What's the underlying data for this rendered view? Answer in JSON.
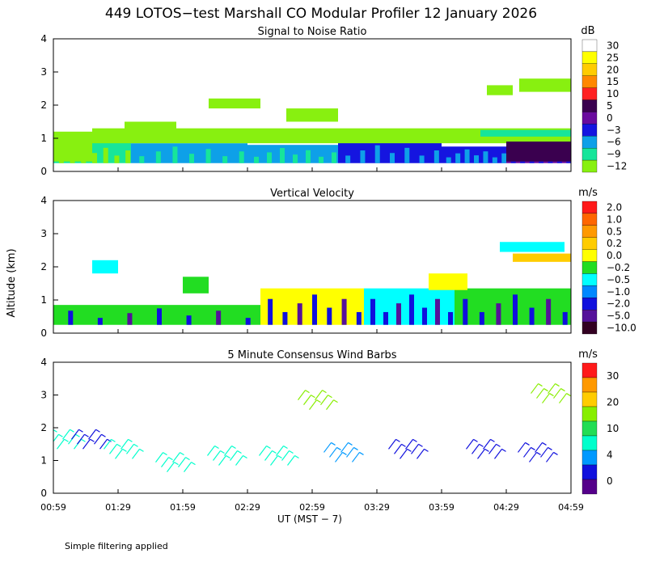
{
  "title": "449 LOTOS−test Marshall CO Modular Profiler 12 January 2026",
  "y_label": "Altitude (km)",
  "x_label": "UT   (MST − 7)",
  "footnote": "Simple filtering applied",
  "x_ticks": [
    "00:59",
    "01:29",
    "01:59",
    "02:29",
    "02:59",
    "03:29",
    "03:59",
    "04:29",
    "04:59"
  ],
  "y_ticks": [
    "0",
    "1",
    "2",
    "3",
    "4"
  ],
  "chart_data": [
    {
      "type": "heatmap",
      "title": "Signal to Noise Ratio",
      "units": "dB",
      "ylim": [
        0,
        4
      ],
      "colorbar": {
        "labels": [
          "30",
          "25",
          "20",
          "15",
          "10",
          "5",
          "0",
          "−3",
          "−6",
          "−9",
          "−12"
        ],
        "colors": [
          "#ffffff",
          "#ffff00",
          "#ffcc00",
          "#ff8800",
          "#ff2222",
          "#3a004f",
          "#6a0a9e",
          "#1515e0",
          "#0ea0e8",
          "#17e59a",
          "#88f010"
        ]
      },
      "bands": [
        {
          "x0": 0.0,
          "x1": 0.6,
          "y0": 0.25,
          "y1": 0.9,
          "level": -9
        },
        {
          "x0": 0.6,
          "x1": 1.5,
          "y0": 0.25,
          "y1": 0.85,
          "level": -6
        },
        {
          "x0": 1.5,
          "x1": 2.2,
          "y0": 0.25,
          "y1": 0.8,
          "level": -6
        },
        {
          "x0": 2.2,
          "x1": 3.0,
          "y0": 0.25,
          "y1": 0.9,
          "level": -3
        },
        {
          "x0": 3.0,
          "x1": 3.5,
          "y0": 0.25,
          "y1": 0.75,
          "level": -3
        },
        {
          "x0": 3.5,
          "x1": 4.0,
          "y0": 0.25,
          "y1": 1.0,
          "level": 0
        }
      ],
      "patches": [
        {
          "x0": 0.0,
          "x1": 0.3,
          "y0": 0.3,
          "y1": 1.2,
          "level": -12
        },
        {
          "x0": 0.3,
          "x1": 4.0,
          "y0": 0.85,
          "y1": 1.3,
          "level": -12
        },
        {
          "x0": 0.55,
          "x1": 0.95,
          "y0": 1.1,
          "y1": 1.5,
          "level": -12
        },
        {
          "x0": 1.2,
          "x1": 1.6,
          "y0": 1.9,
          "y1": 2.2,
          "level": -12
        },
        {
          "x0": 1.8,
          "x1": 2.2,
          "y0": 1.5,
          "y1": 1.9,
          "level": -12
        },
        {
          "x0": 3.35,
          "x1": 3.55,
          "y0": 2.3,
          "y1": 2.6,
          "level": -12
        },
        {
          "x0": 3.6,
          "x1": 4.0,
          "y0": 2.4,
          "y1": 2.8,
          "level": -12
        },
        {
          "x0": 3.3,
          "x1": 4.0,
          "y0": 1.05,
          "y1": 1.25,
          "level": -9
        },
        {
          "x0": 3.5,
          "x1": 4.0,
          "y0": 0.3,
          "y1": 0.9,
          "level": 5
        }
      ]
    },
    {
      "type": "heatmap",
      "title": "Vertical Velocity",
      "units": "m/s",
      "ylim": [
        0,
        4
      ],
      "colorbar": {
        "labels": [
          "2.0",
          "1.0",
          "0.5",
          "0.2",
          "0.0",
          "−0.2",
          "−0.5",
          "−1.0",
          "−2.0",
          "−5.0",
          "−10.0"
        ],
        "colors": [
          "#ff1a1a",
          "#ff6600",
          "#ff9900",
          "#ffcc00",
          "#ffff00",
          "#22dd22",
          "#00ffff",
          "#0088ff",
          "#1010dd",
          "#55119a",
          "#330022"
        ]
      },
      "bands": [
        {
          "x0": 0.0,
          "x1": 1.6,
          "y0": 0.25,
          "y1": 0.85,
          "level": -0.2
        },
        {
          "x0": 1.6,
          "x1": 2.4,
          "y0": 0.25,
          "y1": 1.35,
          "level": 0.0
        },
        {
          "x0": 2.4,
          "x1": 3.1,
          "y0": 0.25,
          "y1": 1.35,
          "level": -0.5
        },
        {
          "x0": 3.1,
          "x1": 4.0,
          "y0": 0.25,
          "y1": 1.35,
          "level": -0.2
        }
      ],
      "patches": [
        {
          "x0": 0.3,
          "x1": 0.5,
          "y0": 1.8,
          "y1": 2.2,
          "level": -0.5
        },
        {
          "x0": 1.0,
          "x1": 1.2,
          "y0": 1.2,
          "y1": 1.7,
          "level": -0.2
        },
        {
          "x0": 2.9,
          "x1": 3.2,
          "y0": 1.3,
          "y1": 1.8,
          "level": 0.0
        },
        {
          "x0": 3.45,
          "x1": 3.95,
          "y0": 2.45,
          "y1": 2.75,
          "level": -0.5
        },
        {
          "x0": 3.55,
          "x1": 4.0,
          "y0": 2.15,
          "y1": 2.4,
          "level": 0.2
        }
      ]
    },
    {
      "type": "scatter",
      "title": "5 Minute Consensus Wind Barbs",
      "units": "m/s",
      "ylim": [
        0,
        4
      ],
      "colorbar": {
        "labels": [
          "30",
          "20",
          "10",
          "4",
          "0"
        ],
        "colors": [
          "#ff1a1a",
          "#ff9900",
          "#ffcc00",
          "#88ee00",
          "#22dd55",
          "#00ffcc",
          "#0099ff",
          "#1010dd",
          "#55008a"
        ]
      },
      "barbs": [
        {
          "x": 0.05,
          "y": 1.5,
          "spd": 6
        },
        {
          "x": 0.25,
          "y": 1.5,
          "spd": 3
        },
        {
          "x": 0.5,
          "y": 1.2,
          "spd": 6
        },
        {
          "x": 0.9,
          "y": 0.8,
          "spd": 8
        },
        {
          "x": 1.3,
          "y": 1.0,
          "spd": 9
        },
        {
          "x": 1.7,
          "y": 1.0,
          "spd": 6
        },
        {
          "x": 2.2,
          "y": 1.1,
          "spd": 4
        },
        {
          "x": 2.7,
          "y": 1.2,
          "spd": 3
        },
        {
          "x": 3.3,
          "y": 1.2,
          "spd": 2
        },
        {
          "x": 3.7,
          "y": 1.1,
          "spd": 2
        },
        {
          "x": 2.0,
          "y": 2.7,
          "spd": 12
        },
        {
          "x": 3.8,
          "y": 2.9,
          "spd": 16
        }
      ]
    }
  ]
}
